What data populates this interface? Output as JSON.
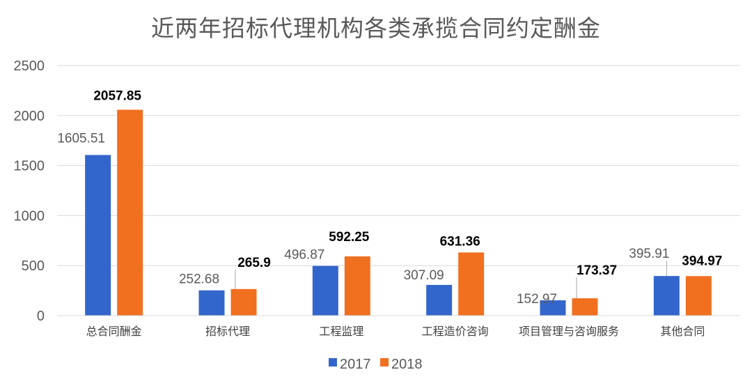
{
  "chart_data": {
    "type": "bar",
    "title": "近两年招标代理机构各类承揽合同约定酬金",
    "categories": [
      "总合同酬金",
      "招标代理",
      "工程监理",
      "工程造价咨询",
      "项目管理与咨询服务",
      "其他合同"
    ],
    "series": [
      {
        "name": "2017",
        "color": "#3366cc",
        "values": [
          1605.51,
          252.68,
          496.87,
          307.09,
          152.97,
          395.91
        ],
        "labels": [
          "1605.51",
          "252.68",
          "496.87",
          "307.09",
          "152.97",
          "395.91"
        ]
      },
      {
        "name": "2018",
        "color": "#f07020",
        "values": [
          2057.85,
          265.9,
          592.25,
          631.36,
          173.37,
          394.97
        ],
        "labels": [
          "2057.85",
          "265.9",
          "592.25",
          "631.36",
          "173.37",
          "394.97"
        ]
      }
    ],
    "yticks": [
      "0",
      "500",
      "1000",
      "1500",
      "2000",
      "2500"
    ],
    "ylim": [
      0,
      2500
    ],
    "grid": true,
    "legend": "bottom"
  }
}
